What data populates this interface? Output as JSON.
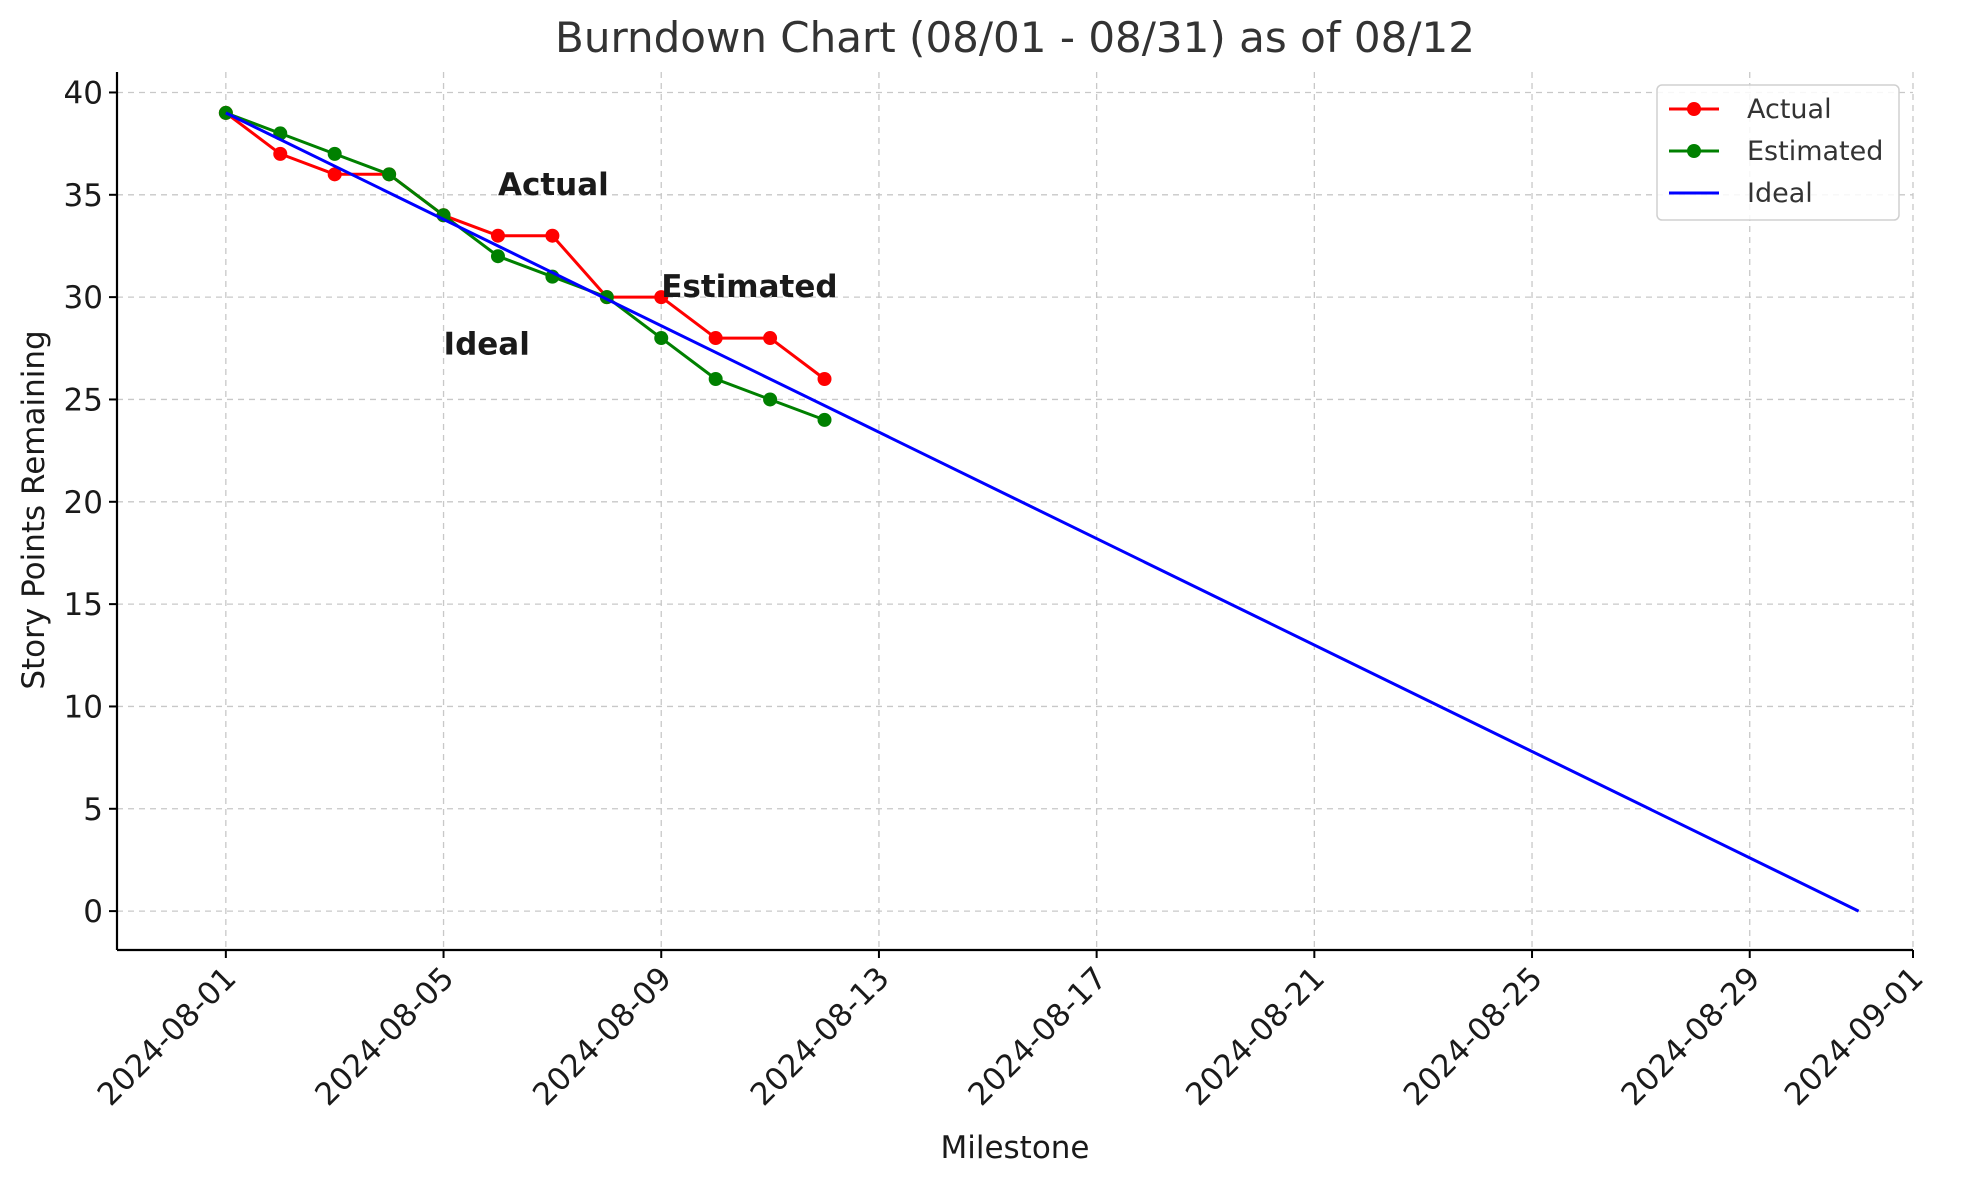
{
  "chart_data": {
    "type": "line",
    "title": "Burndown Chart (08/01 - 08/31) as of 08/12",
    "xlabel": "Milestone",
    "ylabel": "Story Points Remaining",
    "xlim": [
      "2024-07-30",
      "2024-09-01"
    ],
    "ylim": [
      -1.9,
      41
    ],
    "x_ticks": [
      "2024-08-01",
      "2024-08-05",
      "2024-08-09",
      "2024-08-13",
      "2024-08-17",
      "2024-08-21",
      "2024-08-25",
      "2024-08-29",
      "2024-09-01"
    ],
    "y_ticks": [
      0,
      5,
      10,
      15,
      20,
      25,
      30,
      35,
      40
    ],
    "grid": true,
    "legend_position": "top-right",
    "series": [
      {
        "name": "Actual",
        "color": "#ff0000",
        "marker": "circle",
        "x": [
          "2024-08-01",
          "2024-08-02",
          "2024-08-03",
          "2024-08-04",
          "2024-08-05",
          "2024-08-06",
          "2024-08-07",
          "2024-08-08",
          "2024-08-09",
          "2024-08-10",
          "2024-08-11",
          "2024-08-12"
        ],
        "values": [
          39,
          37,
          36,
          36,
          34,
          33,
          33,
          30,
          30,
          28,
          28,
          26
        ]
      },
      {
        "name": "Estimated",
        "color": "#008000",
        "marker": "circle",
        "x": [
          "2024-08-01",
          "2024-08-02",
          "2024-08-03",
          "2024-08-04",
          "2024-08-05",
          "2024-08-06",
          "2024-08-07",
          "2024-08-08",
          "2024-08-09",
          "2024-08-10",
          "2024-08-11",
          "2024-08-12"
        ],
        "values": [
          39,
          38,
          37,
          36,
          34,
          32,
          31,
          30,
          28,
          26,
          25,
          24
        ]
      },
      {
        "name": "Ideal",
        "color": "#0000ff",
        "marker": "none",
        "x": [
          "2024-08-01",
          "2024-08-31"
        ],
        "values": [
          39,
          0
        ]
      }
    ],
    "annotations": [
      {
        "text": "Actual",
        "color": "#ff0000",
        "x": "2024-08-06",
        "y": 35
      },
      {
        "text": "Estimated",
        "color": "#008000",
        "x": "2024-08-09",
        "y": 30
      },
      {
        "text": "Ideal",
        "color": "#0000ff",
        "x": "2024-08-05",
        "y": 27.2
      }
    ]
  }
}
